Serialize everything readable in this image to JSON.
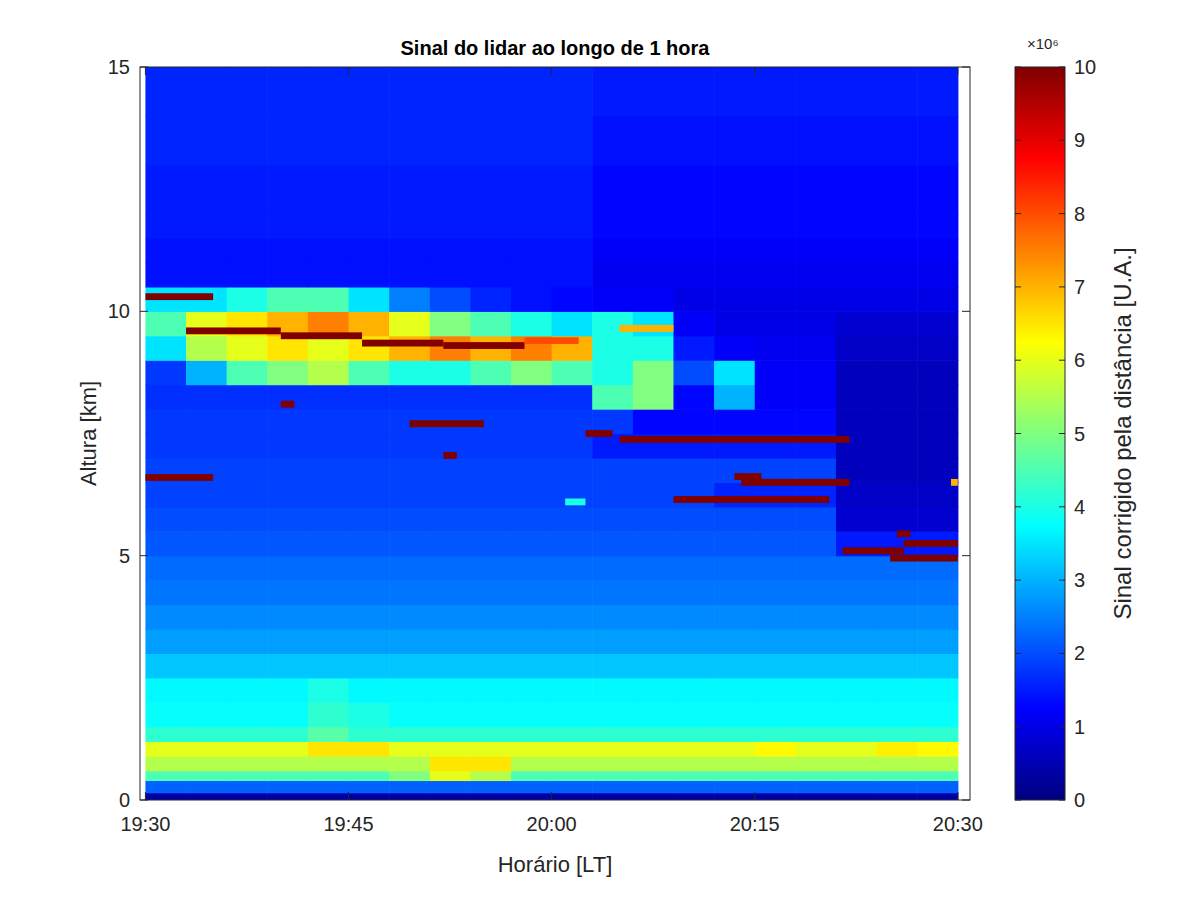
{
  "chart_data": {
    "type": "heatmap",
    "title": "Sinal do lidar ao longo de 1 hora",
    "x_label": "Horário [LT]",
    "y_label": "Altura [km]",
    "xlim": [
      1169.6,
      1230.9
    ],
    "xticks": [
      {
        "value": 1170,
        "label": "19:30"
      },
      {
        "value": 1185,
        "label": "19:45"
      },
      {
        "value": 1200,
        "label": "20:00"
      },
      {
        "value": 1215,
        "label": "20:15"
      },
      {
        "value": 1230,
        "label": "20:30"
      }
    ],
    "ylim": [
      0,
      15
    ],
    "yticks": [
      0,
      5,
      10,
      15
    ],
    "x_edges": [
      1170,
      1173,
      1176,
      1179,
      1182,
      1185,
      1188,
      1191,
      1194,
      1197,
      1200,
      1203,
      1206,
      1209,
      1212,
      1215,
      1218,
      1221,
      1224,
      1227,
      1230
    ],
    "y_edges": [
      0,
      0.15,
      0.4,
      0.6,
      0.9,
      1.2,
      1.5,
      2,
      2.5,
      3,
      3.5,
      4,
      4.5,
      5,
      5.5,
      6,
      6.5,
      7,
      7.5,
      8,
      8.5,
      9,
      9.5,
      10,
      10.5,
      11,
      11.5,
      12,
      13,
      14,
      15
    ],
    "cells": [
      [
        0.4,
        0.4,
        0.4,
        0.4,
        0.4,
        0.4,
        0.4,
        0.4,
        0.4,
        0.4,
        0.4,
        0.4,
        0.4,
        0.4,
        0.4,
        0.4,
        0.4,
        0.4,
        0.4,
        0.4
      ],
      [
        2.2,
        2.2,
        2.2,
        2.2,
        2.2,
        2.2,
        2.2,
        2.2,
        2.2,
        2.2,
        2.2,
        2.2,
        2.2,
        2.2,
        2.2,
        2.2,
        2.2,
        2.2,
        2.2,
        2.2
      ],
      [
        4.5,
        4.5,
        4.5,
        4.5,
        4.5,
        4.5,
        5,
        6,
        5.5,
        4.5,
        4.5,
        4.5,
        4.5,
        4.5,
        4.5,
        4.5,
        4.5,
        4.5,
        4.5,
        4.5
      ],
      [
        5.5,
        5.5,
        5.5,
        5.5,
        5.5,
        5.5,
        5.5,
        6.5,
        6.5,
        5.5,
        5.5,
        5.5,
        5.5,
        5.5,
        5.5,
        5.5,
        5.5,
        5.5,
        5.5,
        5.5
      ],
      [
        6,
        6,
        6,
        6,
        6.5,
        6.5,
        6,
        6,
        6,
        6,
        6,
        6,
        6,
        6,
        6,
        6.3,
        6,
        6,
        6.4,
        6.3
      ],
      [
        4.2,
        4.2,
        4.2,
        4.2,
        4.6,
        4.2,
        4.2,
        4.2,
        4.2,
        4.2,
        4.2,
        4.2,
        4.2,
        4.2,
        4.2,
        4.2,
        4.2,
        4.2,
        4.2,
        4.2
      ],
      [
        3.8,
        3.8,
        3.8,
        3.8,
        4.2,
        4,
        3.8,
        3.8,
        3.8,
        3.8,
        3.8,
        3.8,
        3.8,
        3.8,
        3.8,
        3.8,
        3.8,
        3.8,
        3.8,
        3.8
      ],
      [
        3.7,
        3.7,
        3.7,
        3.7,
        4,
        3.7,
        3.7,
        3.7,
        3.7,
        3.7,
        3.7,
        3.7,
        3.7,
        3.7,
        3.7,
        3.7,
        3.7,
        3.7,
        3.7,
        3.7
      ],
      [
        3.2,
        3.2,
        3.2,
        3.2,
        3.2,
        3.2,
        3.2,
        3.2,
        3.2,
        3.2,
        3.2,
        3.2,
        3.2,
        3.2,
        3.2,
        3.2,
        3.2,
        3.2,
        3.2,
        3.2
      ],
      [
        2.8,
        2.8,
        2.8,
        2.8,
        2.8,
        2.8,
        2.8,
        2.8,
        2.8,
        2.8,
        2.8,
        2.8,
        2.8,
        2.8,
        2.8,
        2.8,
        2.8,
        2.8,
        2.8,
        2.8
      ],
      [
        2.6,
        2.6,
        2.6,
        2.6,
        2.6,
        2.6,
        2.6,
        2.6,
        2.6,
        2.6,
        2.6,
        2.6,
        2.6,
        2.6,
        2.6,
        2.6,
        2.6,
        2.6,
        2.6,
        2.6
      ],
      [
        2.4,
        2.4,
        2.4,
        2.4,
        2.4,
        2.4,
        2.4,
        2.4,
        2.4,
        2.4,
        2.4,
        2.4,
        2.4,
        2.4,
        2.4,
        2.4,
        2.4,
        2.4,
        2.4,
        2.4
      ],
      [
        2.3,
        2.3,
        2.3,
        2.3,
        2.3,
        2.3,
        2.3,
        2.3,
        2.3,
        2.3,
        2.3,
        2.3,
        2.3,
        2.3,
        2.3,
        2.3,
        2.3,
        2.3,
        2.3,
        2.3
      ],
      [
        2.1,
        2.1,
        2.1,
        2.1,
        2.1,
        2.1,
        2.1,
        2.1,
        2.1,
        2.1,
        2.1,
        2.1,
        2.1,
        2.1,
        2.1,
        2.1,
        2.1,
        1.5,
        1.5,
        1.5
      ],
      [
        2,
        2,
        2,
        2,
        2,
        2,
        2,
        2,
        2,
        2,
        2,
        2,
        2,
        2,
        2,
        2,
        2,
        0.8,
        0.8,
        0.8
      ],
      [
        1.9,
        1.9,
        1.9,
        1.9,
        1.9,
        1.9,
        1.9,
        1.9,
        1.9,
        1.9,
        1.9,
        1.9,
        1.9,
        1.9,
        1.6,
        1.6,
        1.6,
        0.7,
        0.7,
        0.7
      ],
      [
        1.9,
        1.9,
        1.9,
        1.9,
        1.9,
        1.9,
        1.9,
        1.9,
        1.9,
        1.9,
        1.9,
        1.9,
        1.9,
        1.9,
        1.9,
        1.9,
        1.9,
        0.6,
        0.6,
        0.6
      ],
      [
        1.8,
        1.8,
        1.8,
        1.8,
        1.8,
        1.8,
        1.8,
        1.8,
        1.8,
        1.8,
        1.8,
        1.5,
        1.5,
        1.5,
        1.5,
        1.5,
        1.5,
        0.6,
        0.6,
        0.6
      ],
      [
        1.8,
        1.8,
        1.8,
        1.8,
        1.8,
        1.8,
        1.8,
        1.8,
        1.8,
        1.8,
        1.8,
        1.8,
        1.3,
        1.3,
        1.3,
        1.3,
        1.3,
        0.6,
        0.6,
        0.6
      ],
      [
        1.7,
        1.7,
        1.7,
        1.7,
        1.7,
        1.7,
        1.7,
        1.7,
        1.7,
        1.7,
        1.7,
        4.5,
        5,
        1.3,
        3,
        1.2,
        1.2,
        0.6,
        0.6,
        0.6
      ],
      [
        1.8,
        3,
        4.5,
        5,
        5.5,
        4.5,
        4,
        4,
        4.5,
        5,
        4.5,
        4,
        5,
        2,
        3.5,
        1.2,
        1.2,
        0.6,
        0.6,
        0.6
      ],
      [
        3.5,
        5.5,
        6,
        6.5,
        6,
        6.5,
        7,
        7.5,
        7,
        7.5,
        7,
        4,
        4,
        1.5,
        1.2,
        1.1,
        1.1,
        0.7,
        0.7,
        0.7
      ],
      [
        4.5,
        6,
        6.5,
        7,
        7.5,
        7,
        6,
        5,
        4.5,
        4,
        3.5,
        4,
        3.5,
        1.2,
        1,
        1,
        1,
        0.8,
        0.8,
        0.8
      ],
      [
        3.5,
        3.5,
        4,
        4.5,
        4.5,
        3.5,
        2.5,
        2,
        1.6,
        1.4,
        1.3,
        1.2,
        1.2,
        1,
        1,
        1,
        1,
        1,
        1,
        1
      ],
      [
        1.4,
        1.4,
        1.4,
        1.4,
        1.4,
        1.4,
        1.4,
        1.4,
        1.4,
        1.4,
        1.4,
        1.1,
        1.1,
        1.1,
        1.1,
        1.1,
        1.1,
        1.1,
        1.1,
        1.1
      ],
      [
        1.4,
        1.4,
        1.4,
        1.4,
        1.4,
        1.4,
        1.4,
        1.4,
        1.4,
        1.4,
        1.4,
        1.2,
        1.2,
        1.2,
        1.2,
        1.2,
        1.2,
        1.2,
        1.2,
        1.2
      ],
      [
        1.5,
        1.5,
        1.5,
        1.5,
        1.5,
        1.5,
        1.5,
        1.5,
        1.5,
        1.5,
        1.5,
        1.3,
        1.3,
        1.3,
        1.3,
        1.3,
        1.3,
        1.3,
        1.3,
        1.3
      ],
      [
        1.5,
        1.5,
        1.5,
        1.5,
        1.5,
        1.5,
        1.5,
        1.5,
        1.5,
        1.5,
        1.5,
        1.3,
        1.3,
        1.3,
        1.3,
        1.3,
        1.3,
        1.3,
        1.3,
        1.3
      ],
      [
        1.6,
        1.6,
        1.6,
        1.6,
        1.6,
        1.6,
        1.6,
        1.6,
        1.6,
        1.6,
        1.6,
        1.4,
        1.4,
        1.4,
        1.4,
        1.4,
        1.4,
        1.4,
        1.4,
        1.4
      ],
      [
        1.6,
        1.6,
        1.6,
        1.6,
        1.6,
        1.6,
        1.6,
        1.6,
        1.6,
        1.6,
        1.6,
        1.5,
        1.5,
        1.5,
        1.5,
        1.5,
        1.5,
        1.5,
        1.5,
        1.5
      ]
    ],
    "layers": [
      {
        "x": [
          1170,
          1175
        ],
        "y": 10.3,
        "value": 10
      },
      {
        "x": [
          1170,
          1175
        ],
        "y": 6.6,
        "value": 10
      },
      {
        "x": [
          1173,
          1180
        ],
        "y": 9.6,
        "value": 10
      },
      {
        "x": [
          1180,
          1186
        ],
        "y": 9.5,
        "value": 10
      },
      {
        "x": [
          1186,
          1192
        ],
        "y": 9.35,
        "value": 10
      },
      {
        "x": [
          1192,
          1198
        ],
        "y": 9.3,
        "value": 10
      },
      {
        "x": [
          1198,
          1202
        ],
        "y": 9.4,
        "value": 8
      },
      {
        "x": [
          1180,
          1181
        ],
        "y": 8.1,
        "value": 10
      },
      {
        "x": [
          1189.5,
          1195
        ],
        "y": 7.7,
        "value": 10
      },
      {
        "x": [
          1192,
          1193
        ],
        "y": 7.05,
        "value": 10
      },
      {
        "x": [
          1202.5,
          1204.5
        ],
        "y": 7.5,
        "value": 10
      },
      {
        "x": [
          1205,
          1222
        ],
        "y": 7.38,
        "value": 10
      },
      {
        "x": [
          1201,
          1202.5
        ],
        "y": 6.1,
        "value": 4
      },
      {
        "x": [
          1209,
          1220.5
        ],
        "y": 6.15,
        "value": 10
      },
      {
        "x": [
          1214,
          1222
        ],
        "y": 6.5,
        "value": 10
      },
      {
        "x": [
          1213.5,
          1215.5
        ],
        "y": 6.62,
        "value": 10
      },
      {
        "x": [
          1221.5,
          1226
        ],
        "y": 5.1,
        "value": 10
      },
      {
        "x": [
          1225,
          1230
        ],
        "y": 4.95,
        "value": 10
      },
      {
        "x": [
          1226,
          1230
        ],
        "y": 5.25,
        "value": 10
      },
      {
        "x": [
          1225.5,
          1226.5
        ],
        "y": 5.45,
        "value": 10
      },
      {
        "x": [
          1229.5,
          1230
        ],
        "y": 6.5,
        "value": 7
      },
      {
        "x": [
          1205,
          1209
        ],
        "y": 9.65,
        "value": 7
      }
    ],
    "clim": [
      0,
      10
    ],
    "cticks": [
      0,
      1,
      2,
      3,
      4,
      5,
      6,
      7,
      8,
      9,
      10
    ],
    "colorbar_label": "Sinal corrigido pela distância [U.A.]",
    "colorbar_multiplier": "×10⁶"
  }
}
